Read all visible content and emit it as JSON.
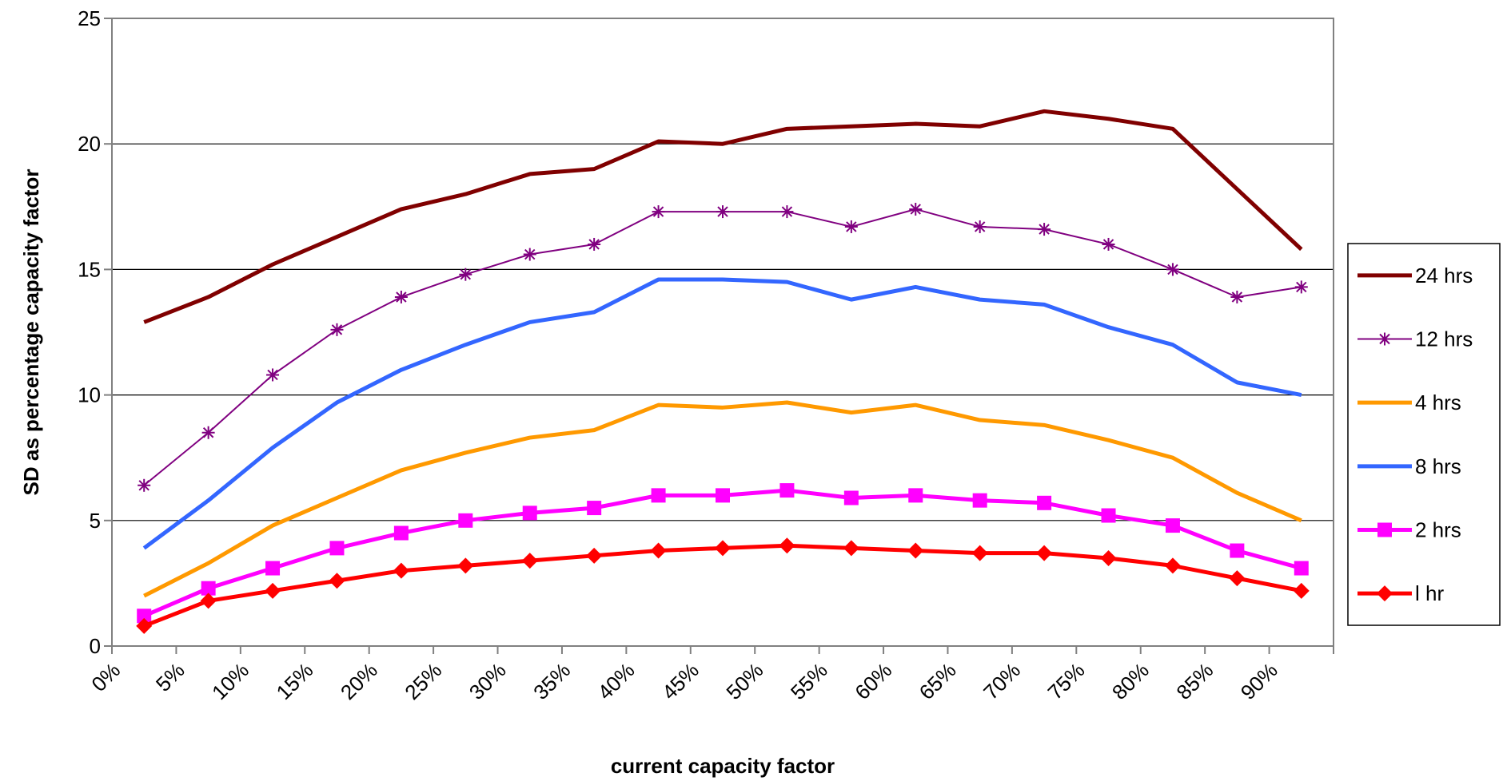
{
  "chart_data": {
    "type": "line",
    "title": "",
    "xlabel": "current capacity factor",
    "ylabel": "SD as percentage capacity factor",
    "ylim": [
      0,
      25
    ],
    "yticks": [
      0,
      5,
      10,
      15,
      20,
      25
    ],
    "xticks": [
      "0%",
      "5%",
      "10%",
      "15%",
      "20%",
      "25%",
      "30%",
      "35%",
      "40%",
      "45%",
      "50%",
      "55%",
      "60%",
      "65%",
      "70%",
      "75%",
      "80%",
      "85%",
      "90%"
    ],
    "x": [
      2.5,
      7.5,
      12.5,
      17.5,
      22.5,
      27.5,
      32.5,
      37.5,
      42.5,
      47.5,
      52.5,
      57.5,
      62.5,
      67.5,
      72.5,
      77.5,
      82.5,
      87.5,
      92.5
    ],
    "xlim": [
      0,
      95
    ],
    "grid": "horizontal",
    "legend_position": "right",
    "series": [
      {
        "name": "24 hrs",
        "color": "#800000",
        "marker": "none",
        "values": [
          12.9,
          13.9,
          15.2,
          16.3,
          17.4,
          18.0,
          18.8,
          19.0,
          20.1,
          20.0,
          20.6,
          20.7,
          20.8,
          20.7,
          21.3,
          21.0,
          20.6,
          18.2,
          15.8
        ]
      },
      {
        "name": "12 hrs",
        "color": "#800080",
        "marker": "star",
        "values": [
          6.4,
          8.5,
          10.8,
          12.6,
          13.9,
          14.8,
          15.6,
          16.0,
          17.3,
          17.3,
          17.3,
          16.7,
          17.4,
          16.7,
          16.6,
          16.0,
          15.0,
          13.9,
          14.3
        ]
      },
      {
        "name": "4 hrs",
        "color": "#FF9900",
        "marker": "none",
        "values": [
          2.0,
          3.3,
          4.8,
          5.9,
          7.0,
          7.7,
          8.3,
          8.6,
          9.6,
          9.5,
          9.7,
          9.3,
          9.6,
          9.0,
          8.8,
          8.2,
          7.5,
          6.1,
          5.0
        ]
      },
      {
        "name": "8 hrs",
        "color": "#3366FF",
        "marker": "none",
        "values": [
          3.9,
          5.8,
          7.9,
          9.7,
          11.0,
          12.0,
          12.9,
          13.3,
          14.6,
          14.6,
          14.5,
          13.8,
          14.3,
          13.8,
          13.6,
          12.7,
          12.0,
          10.5,
          10.0
        ]
      },
      {
        "name": "2 hrs",
        "color": "#FF00FF",
        "marker": "square",
        "values": [
          1.2,
          2.3,
          3.1,
          3.9,
          4.5,
          5.0,
          5.3,
          5.5,
          6.0,
          6.0,
          6.2,
          5.9,
          6.0,
          5.8,
          5.7,
          5.2,
          4.8,
          3.8,
          3.1
        ]
      },
      {
        "name": "l hr",
        "color": "#FF0000",
        "marker": "diamond",
        "values": [
          0.8,
          1.8,
          2.2,
          2.6,
          3.0,
          3.2,
          3.4,
          3.6,
          3.8,
          3.9,
          4.0,
          3.9,
          3.8,
          3.7,
          3.7,
          3.5,
          3.2,
          2.7,
          2.2
        ]
      }
    ]
  }
}
